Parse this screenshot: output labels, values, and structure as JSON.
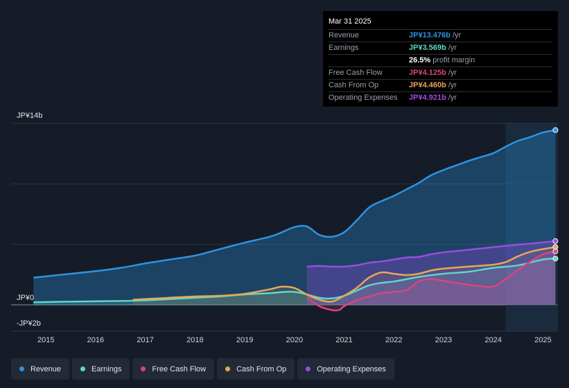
{
  "tooltip": {
    "date": "Mar 31 2025",
    "rows": [
      {
        "label": "Revenue",
        "value": "JP¥13.476b",
        "unit": "/yr",
        "color": "#2d94e3"
      },
      {
        "label": "Earnings",
        "value": "JP¥3.569b",
        "unit": "/yr",
        "color": "#5fd7c8"
      },
      {
        "label": "",
        "value": "26.5%",
        "unit": "profit margin",
        "color": "#ffffff"
      },
      {
        "label": "Free Cash Flow",
        "value": "JP¥4.125b",
        "unit": "/yr",
        "color": "#d8467f"
      },
      {
        "label": "Cash From Op",
        "value": "JP¥4.460b",
        "unit": "/yr",
        "color": "#e8a756"
      },
      {
        "label": "Operating Expenses",
        "value": "JP¥4.921b",
        "unit": "/yr",
        "color": "#9b4de0"
      }
    ]
  },
  "legend": [
    {
      "label": "Revenue",
      "color": "#2d94e3"
    },
    {
      "label": "Earnings",
      "color": "#5fd7c8"
    },
    {
      "label": "Free Cash Flow",
      "color": "#d8467f"
    },
    {
      "label": "Cash From Op",
      "color": "#e8a756"
    },
    {
      "label": "Operating Expenses",
      "color": "#9b4de0"
    }
  ],
  "chart_data": {
    "type": "area",
    "title": "",
    "xlabel": "",
    "ylabel": "",
    "ylim": [
      -2,
      14
    ],
    "y_tick_labels": [
      "JP¥14b",
      "JP¥0",
      "-JP¥2b"
    ],
    "y_tick_values": [
      14,
      0,
      -2
    ],
    "x_tick_labels": [
      "2015",
      "2016",
      "2017",
      "2018",
      "2019",
      "2020",
      "2021",
      "2022",
      "2023",
      "2024",
      "2025"
    ],
    "x_tick_values": [
      2015,
      2016,
      2017,
      2018,
      2019,
      2020,
      2021,
      2022,
      2023,
      2024,
      2025
    ],
    "xlim": [
      2014.3,
      2025.3
    ],
    "highlight_start": 2024.25,
    "series": [
      {
        "name": "Revenue",
        "color": "#2d94e3",
        "x": [
          2014.75,
          2015.0,
          2015.5,
          2016.0,
          2016.5,
          2017.0,
          2017.25,
          2017.5,
          2018.0,
          2018.5,
          2019.0,
          2019.5,
          2019.75,
          2020.0,
          2020.25,
          2020.5,
          2020.75,
          2021.0,
          2021.25,
          2021.5,
          2021.75,
          2022.0,
          2022.25,
          2022.5,
          2022.75,
          2023.0,
          2023.25,
          2023.5,
          2023.75,
          2024.0,
          2024.25,
          2024.5,
          2024.75,
          2025.0,
          2025.25
        ],
        "y": [
          2.1,
          2.2,
          2.4,
          2.6,
          2.85,
          3.2,
          3.35,
          3.5,
          3.8,
          4.3,
          4.8,
          5.25,
          5.6,
          6.0,
          6.05,
          5.4,
          5.25,
          5.6,
          6.5,
          7.5,
          8.0,
          8.4,
          8.9,
          9.4,
          10.0,
          10.4,
          10.75,
          11.1,
          11.4,
          11.7,
          12.2,
          12.65,
          12.95,
          13.3,
          13.476
        ]
      },
      {
        "name": "Earnings",
        "color": "#5fd7c8",
        "x": [
          2014.75,
          2015.5,
          2016.5,
          2017.0,
          2017.5,
          2018.0,
          2018.5,
          2019.0,
          2019.5,
          2020.0,
          2020.5,
          2020.75,
          2021.0,
          2021.25,
          2021.5,
          2021.75,
          2022.0,
          2022.5,
          2023.0,
          2023.5,
          2024.0,
          2024.5,
          2025.0,
          2025.25
        ],
        "y": [
          0.2,
          0.25,
          0.3,
          0.35,
          0.45,
          0.55,
          0.65,
          0.8,
          0.9,
          1.0,
          0.55,
          0.5,
          0.7,
          1.1,
          1.5,
          1.7,
          1.8,
          2.15,
          2.4,
          2.55,
          2.85,
          3.05,
          3.5,
          3.569
        ]
      },
      {
        "name": "Free Cash Flow",
        "color": "#d8467f",
        "x": [
          2020.25,
          2020.5,
          2020.75,
          2020.9,
          2021.0,
          2021.25,
          2021.5,
          2021.75,
          2022.0,
          2022.25,
          2022.5,
          2022.75,
          2023.0,
          2023.25,
          2023.5,
          2023.75,
          2024.0,
          2024.25,
          2024.5,
          2024.75,
          2025.0,
          2025.25
        ],
        "y": [
          0.6,
          -0.1,
          -0.4,
          -0.4,
          -0.1,
          0.35,
          0.65,
          0.9,
          1.0,
          1.15,
          1.8,
          2.0,
          1.85,
          1.7,
          1.55,
          1.45,
          1.4,
          2.0,
          2.7,
          3.35,
          3.9,
          4.125
        ]
      },
      {
        "name": "Cash From Op",
        "color": "#e8a756",
        "x": [
          2016.75,
          2017.0,
          2017.5,
          2018.0,
          2018.5,
          2019.0,
          2019.5,
          2019.75,
          2020.0,
          2020.25,
          2020.5,
          2020.75,
          2021.0,
          2021.25,
          2021.5,
          2021.75,
          2022.0,
          2022.25,
          2022.5,
          2022.75,
          2023.0,
          2023.5,
          2024.0,
          2024.25,
          2024.5,
          2024.75,
          2025.0,
          2025.25
        ],
        "y": [
          0.4,
          0.45,
          0.55,
          0.65,
          0.7,
          0.85,
          1.2,
          1.4,
          1.3,
          0.8,
          0.4,
          0.25,
          0.7,
          1.3,
          2.1,
          2.5,
          2.4,
          2.3,
          2.4,
          2.65,
          2.8,
          2.95,
          3.1,
          3.3,
          3.75,
          4.1,
          4.3,
          4.46
        ]
      },
      {
        "name": "Operating Expenses",
        "color": "#9b4de0",
        "x": [
          2020.25,
          2020.5,
          2020.75,
          2021.0,
          2021.25,
          2021.5,
          2021.75,
          2022.0,
          2022.25,
          2022.5,
          2022.75,
          2023.0,
          2023.25,
          2023.5,
          2023.75,
          2024.0,
          2024.25,
          2024.5,
          2024.75,
          2025.0,
          2025.25
        ],
        "y": [
          2.95,
          3.0,
          2.95,
          2.95,
          3.05,
          3.25,
          3.35,
          3.5,
          3.65,
          3.7,
          3.9,
          4.05,
          4.15,
          4.25,
          4.35,
          4.45,
          4.55,
          4.65,
          4.72,
          4.82,
          4.921
        ]
      }
    ]
  }
}
